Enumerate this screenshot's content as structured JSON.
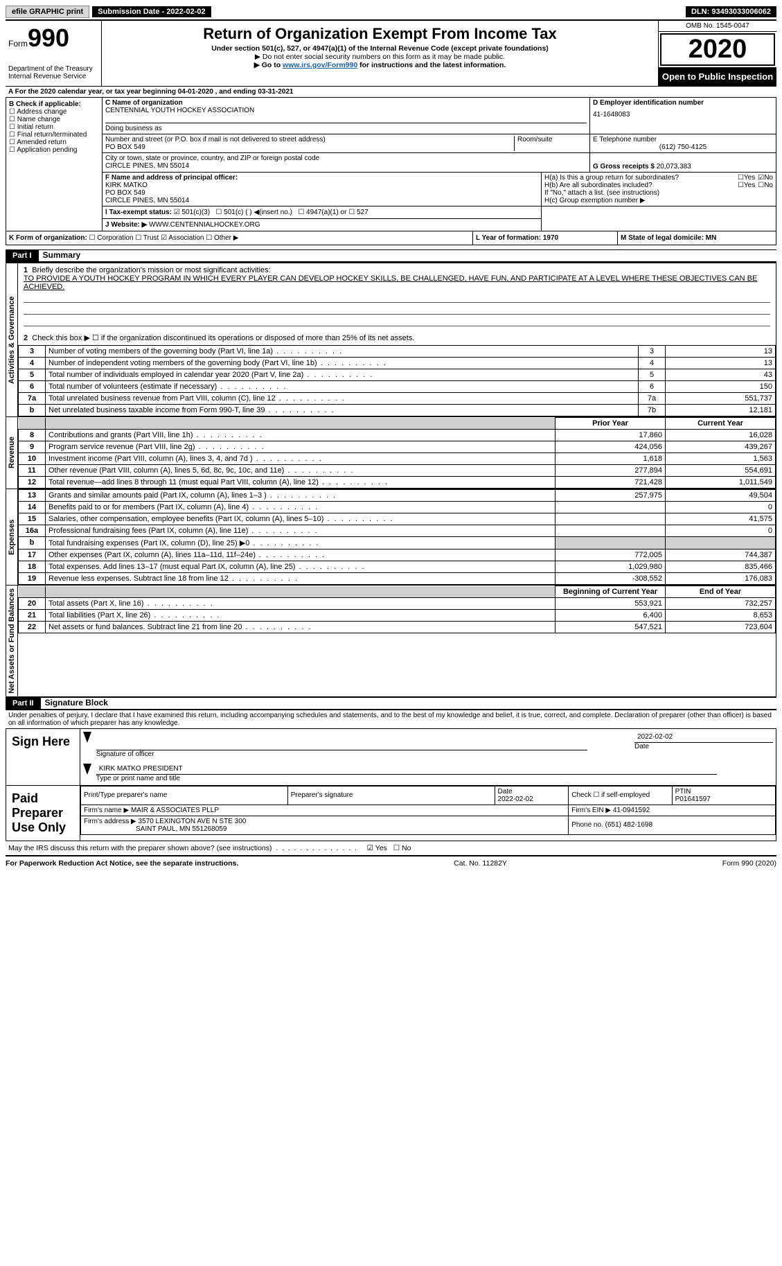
{
  "topbar": {
    "efile": "efile GRAPHIC print",
    "subdate_label": "Submission Date - 2022-02-02",
    "dln_label": "DLN: 93493033006062"
  },
  "header": {
    "form_word": "Form",
    "form_num": "990",
    "dept": "Department of the Treasury\nInternal Revenue Service",
    "title": "Return of Organization Exempt From Income Tax",
    "sub1": "Under section 501(c), 527, or 4947(a)(1) of the Internal Revenue Code (except private foundations)",
    "sub2": "▶ Do not enter social security numbers on this form as it may be made public.",
    "sub3_pre": "▶ Go to ",
    "sub3_link": "www.irs.gov/Form990",
    "sub3_post": " for instructions and the latest information.",
    "omb": "OMB No. 1545-0047",
    "year": "2020",
    "open_pub": "Open to Public Inspection"
  },
  "sectionA": "A For the 2020 calendar year, or tax year beginning 04-01-2020    , and ending 03-31-2021",
  "colB": {
    "hdr": "B Check if applicable:",
    "items": [
      "☐ Address change",
      "☐ Name change",
      "☐ Initial return",
      "☐ Final return/terminated",
      "☐ Amended return",
      "☐ Application pending"
    ]
  },
  "colC": {
    "name_label": "C Name of organization",
    "name": "CENTENNIAL YOUTH HOCKEY ASSOCIATION",
    "dba_label": "Doing business as",
    "addr_label": "Number and street (or P.O. box if mail is not delivered to street address)",
    "room_label": "Room/suite",
    "addr": "PO BOX 549",
    "city_label": "City or town, state or province, country, and ZIP or foreign postal code",
    "city": "CIRCLE PINES, MN  55014"
  },
  "colD": {
    "label": "D Employer identification number",
    "ein": "41-1648083"
  },
  "colE": {
    "label": "E Telephone number",
    "phone": "(612) 750-4125"
  },
  "colG": {
    "label": "G Gross receipts $",
    "amount": "20,073,383"
  },
  "colF": {
    "label": "F  Name and address of principal officer:",
    "name": "KIRK MATKO",
    "addr1": "PO BOX 549",
    "addr2": "CIRCLE PINES, MN  55014"
  },
  "colH": {
    "a_label": "H(a)  Is this a group return for subordinates?",
    "a_yes": "☐Yes",
    "a_no": "☑No",
    "b_label": "H(b)  Are all subordinates included?",
    "b_yes": "☐Yes",
    "b_no": "☐No",
    "b_note": "If \"No,\" attach a list. (see instructions)",
    "c_label": "H(c)  Group exemption number ▶"
  },
  "rowI": {
    "label": "I   Tax-exempt status:",
    "o1": "☑  501(c)(3)",
    "o2": "☐    501(c) (  ) ◀(insert no.)",
    "o3": "☐  4947(a)(1) or",
    "o4": "☐  527"
  },
  "rowJ": {
    "label": "J   Website: ▶",
    "val": "WWW.CENTENNIALHOCKEY.ORG"
  },
  "rowK": {
    "label": "K Form of organization:",
    "o1": "☐  Corporation",
    "o2": "☐  Trust",
    "o3": "☑  Association",
    "o4": "☐  Other ▶"
  },
  "rowL": "L Year of formation: 1970",
  "rowM": "M State of legal domicile: MN",
  "part1": {
    "hdr": "Part I",
    "title": "Summary"
  },
  "q1": {
    "num": "1",
    "label": "Briefly describe the organization's mission or most significant activities:",
    "text": "TO PROVIDE A YOUTH HOCKEY PROGRAM IN WHICH EVERY PLAYER CAN DEVELOP HOCKEY SKILLS, BE CHALLENGED, HAVE FUN, AND PARTICIPATE AT A LEVEL WHERE THESE OBJECTIVES CAN BE ACHIEVED."
  },
  "q2": "Check this box ▶ ☐  if the organization discontinued its operations or disposed of more than 25% of its net assets.",
  "gov_rows": [
    {
      "n": "3",
      "label": "Number of voting members of the governing body (Part VI, line 1a)",
      "box": "3",
      "val": "13"
    },
    {
      "n": "4",
      "label": "Number of independent voting members of the governing body (Part VI, line 1b)",
      "box": "4",
      "val": "13"
    },
    {
      "n": "5",
      "label": "Total number of individuals employed in calendar year 2020 (Part V, line 2a)",
      "box": "5",
      "val": "43"
    },
    {
      "n": "6",
      "label": "Total number of volunteers (estimate if necessary)",
      "box": "6",
      "val": "150"
    },
    {
      "n": "7a",
      "label": "Total unrelated business revenue from Part VIII, column (C), line 12",
      "box": "7a",
      "val": "551,737"
    },
    {
      "n": "b",
      "label": "Net unrelated business taxable income from Form 990-T, line 39",
      "box": "7b",
      "val": "12,181"
    }
  ],
  "fin_hdr_prior": "Prior Year",
  "fin_hdr_curr": "Current Year",
  "revenue_rows": [
    {
      "n": "8",
      "label": "Contributions and grants (Part VIII, line 1h)",
      "py": "17,860",
      "cy": "16,028"
    },
    {
      "n": "9",
      "label": "Program service revenue (Part VIII, line 2g)",
      "py": "424,056",
      "cy": "439,267"
    },
    {
      "n": "10",
      "label": "Investment income (Part VIII, column (A), lines 3, 4, and 7d )",
      "py": "1,618",
      "cy": "1,563"
    },
    {
      "n": "11",
      "label": "Other revenue (Part VIII, column (A), lines 5, 6d, 8c, 9c, 10c, and 11e)",
      "py": "277,894",
      "cy": "554,691"
    },
    {
      "n": "12",
      "label": "Total revenue—add lines 8 through 11 (must equal Part VIII, column (A), line 12)",
      "py": "721,428",
      "cy": "1,011,549"
    }
  ],
  "expense_rows": [
    {
      "n": "13",
      "label": "Grants and similar amounts paid (Part IX, column (A), lines 1–3 )",
      "py": "257,975",
      "cy": "49,504"
    },
    {
      "n": "14",
      "label": "Benefits paid to or for members (Part IX, column (A), line 4)",
      "py": "",
      "cy": "0"
    },
    {
      "n": "15",
      "label": "Salaries, other compensation, employee benefits (Part IX, column (A), lines 5–10)",
      "py": "",
      "cy": "41,575"
    },
    {
      "n": "16a",
      "label": "Professional fundraising fees (Part IX, column (A), line 11e)",
      "py": "",
      "cy": "0"
    },
    {
      "n": "b",
      "label": "Total fundraising expenses (Part IX, column (D), line 25) ▶0",
      "py": "shaded",
      "cy": "shaded"
    },
    {
      "n": "17",
      "label": "Other expenses (Part IX, column (A), lines 11a–11d, 11f–24e)",
      "py": "772,005",
      "cy": "744,387"
    },
    {
      "n": "18",
      "label": "Total expenses. Add lines 13–17 (must equal Part IX, column (A), line 25)",
      "py": "1,029,980",
      "cy": "835,466"
    },
    {
      "n": "19",
      "label": "Revenue less expenses. Subtract line 18 from line 12",
      "py": "-308,552",
      "cy": "176,083"
    }
  ],
  "na_hdr_1": "Beginning of Current Year",
  "na_hdr_2": "End of Year",
  "netasset_rows": [
    {
      "n": "20",
      "label": "Total assets (Part X, line 16)",
      "py": "553,921",
      "cy": "732,257"
    },
    {
      "n": "21",
      "label": "Total liabilities (Part X, line 26)",
      "py": "6,400",
      "cy": "8,653"
    },
    {
      "n": "22",
      "label": "Net assets or fund balances. Subtract line 21 from line 20",
      "py": "547,521",
      "cy": "723,604"
    }
  ],
  "section_labels": {
    "gov": "Activities & Governance",
    "rev": "Revenue",
    "exp": "Expenses",
    "na": "Net Assets or Fund Balances"
  },
  "part2": {
    "hdr": "Part II",
    "title": "Signature Block"
  },
  "penalties": "Under penalties of perjury, I declare that I have examined this return, including accompanying schedules and statements, and to the best of my knowledge and belief, it is true, correct, and complete. Declaration of preparer (other than officer) is based on all information of which preparer has any knowledge.",
  "sign": {
    "label": "Sign Here",
    "sig_label": "Signature of officer",
    "date": "2022-02-02",
    "date_label": "Date",
    "name": "KIRK MATKO  PRESIDENT",
    "name_label": "Type or print name and title"
  },
  "paid": {
    "label": "Paid Preparer Use Only",
    "hdr1": "Print/Type preparer's name",
    "hdr2": "Preparer's signature",
    "hdr3_label": "Date",
    "hdr3": "2022-02-02",
    "hdr4": "Check ☐ if self-employed",
    "hdr5_label": "PTIN",
    "hdr5": "P01641597",
    "firm_label": "Firm's name    ▶",
    "firm": "MAIR & ASSOCIATES PLLP",
    "ein_label": "Firm's EIN ▶",
    "ein": "41-0941592",
    "addr_label": "Firm's address ▶",
    "addr1": "3570 LEXINGTON AVE N STE 300",
    "addr2": "SAINT PAUL, MN  551268059",
    "phone_label": "Phone no.",
    "phone": "(651) 482-1698"
  },
  "may_irs": {
    "label": "May the IRS discuss this return with the preparer shown above? (see instructions)",
    "yes": "☑ Yes",
    "no": "☐ No"
  },
  "footer": {
    "left": "For Paperwork Reduction Act Notice, see the separate instructions.",
    "mid": "Cat. No. 11282Y",
    "right": "Form 990 (2020)"
  }
}
